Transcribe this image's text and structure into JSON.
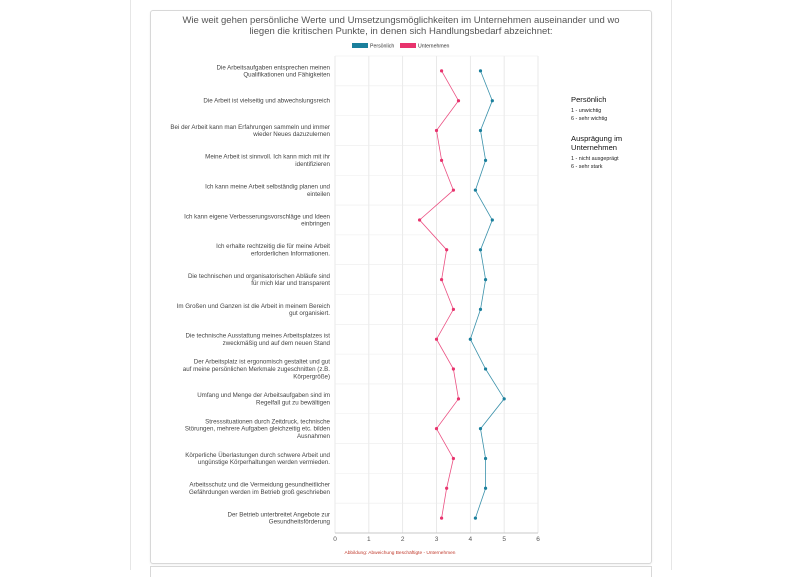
{
  "chart_data": {
    "type": "line",
    "orientation": "horizontal",
    "title_lines": [
      "Wie weit gehen persönliche Werte und Umsetzungsmöglichkeiten im Unternehmen auseinander und wo",
      "liegen die kritischen Punkte, in denen sich Handlungsbedarf abzeichnet:"
    ],
    "categories": [
      [
        "Die Arbeitsaufgaben entsprechen meinen",
        "Qualifikationen und Fähigkeiten"
      ],
      [
        "Die Arbeit ist vielseitig und abwechslungsreich"
      ],
      [
        "Bei der Arbeit kann man Erfahrungen sammeln und immer",
        "wieder Neues dazuzulernen"
      ],
      [
        "Meine Arbeit ist sinnvoll. Ich kann mich mit ihr",
        "identifizieren"
      ],
      [
        "Ich kann meine Arbeit selbständig planen und",
        "einteilen"
      ],
      [
        "Ich kann eigene Verbesserungsvorschläge und Ideen",
        "einbringen"
      ],
      [
        "Ich erhalte rechtzeitig die für meine Arbeit",
        "erforderlichen Informationen."
      ],
      [
        "Die technischen und organisatorischen Abläufe sind",
        "für mich klar und transparent"
      ],
      [
        "Im Großen und Ganzen ist die Arbeit in meinem Bereich",
        "gut organisiert."
      ],
      [
        "Die technische Ausstattung meines Arbeitsplatzes ist",
        "zweckmäßig und auf dem neuen Stand"
      ],
      [
        "Der Arbeitsplatz ist ergonomisch gestaltet und gut",
        "auf meine persönlichen Merkmale zugeschnitten (z.B.",
        "Körpergröße)"
      ],
      [
        "Umfang und Menge der Arbeitsaufgaben sind im",
        "Regelfall gut zu bewältigen"
      ],
      [
        "Stresssituationen durch Zeitdruck, technische",
        "Störungen, mehrere Aufgaben gleichzeitig etc. bilden",
        "Ausnahmen"
      ],
      [
        "Körperliche Überlastungen durch schwere Arbeit und",
        "ungünstige Körperhaltungen werden vermieden."
      ],
      [
        "Arbeitsschutz und die Vermeidung gesundheitlicher",
        "Gefährdungen werden im Betrieb groß geschrieben"
      ],
      [
        "Der Betrieb unterbreitet Angebote zur",
        "Gesundheitsförderung"
      ]
    ],
    "series": [
      {
        "name": "Persönlich",
        "color": "#1a7f9c",
        "values": [
          4.3,
          4.65,
          4.3,
          4.45,
          4.15,
          4.65,
          4.3,
          4.45,
          4.3,
          4.0,
          4.45,
          5.0,
          4.3,
          4.45,
          4.45,
          4.15
        ]
      },
      {
        "name": "Unternehmen",
        "color": "#e8336d",
        "values": [
          3.15,
          3.65,
          3.0,
          3.15,
          3.5,
          2.5,
          3.3,
          3.15,
          3.5,
          3.0,
          3.5,
          3.65,
          3.0,
          3.5,
          3.3,
          3.15
        ]
      }
    ],
    "xlim": [
      0,
      6
    ],
    "xticks": [
      "0",
      "1",
      "2",
      "3",
      "4",
      "5",
      "6"
    ],
    "grid": true,
    "legend_position": "top",
    "caption": "Abbildung: Abweichung Beschäftigte - Unternehmen"
  },
  "side_legend": {
    "persoenlich_head": "Persönlich",
    "persoenlich_lines": [
      "1 - unwichtig",
      "6 - sehr wichtig"
    ],
    "unternehmen_head_lines": [
      "Ausprägung im",
      "Unternehmen"
    ],
    "unternehmen_lines": [
      "1 - nicht ausgeprägt",
      "6 - sehr stark"
    ]
  }
}
